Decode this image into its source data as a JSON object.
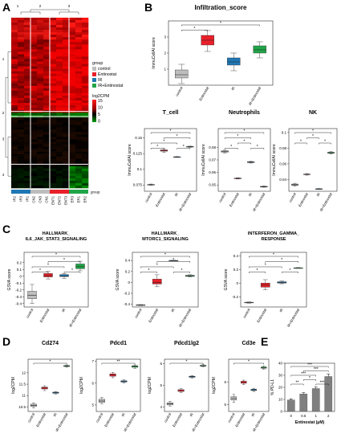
{
  "panels": {
    "A": "A",
    "B": "B",
    "C": "C",
    "D": "D",
    "E": "E"
  },
  "heatmap": {
    "cluster_labels": [
      "1",
      "2",
      "3"
    ],
    "row_cluster_labels": [
      "1",
      "2",
      "3",
      "4"
    ],
    "sample_labels": [
      "IR2",
      "IR3",
      "IR1",
      "CN2",
      "CN3",
      "CN1",
      "ENT1",
      "ENT2",
      "ENT3",
      "ER3",
      "ER1",
      "ER2"
    ],
    "group_label": "group",
    "legend_title": "group",
    "legend_items": [
      {
        "label": "control",
        "color": "#bdbdbd"
      },
      {
        "label": "Entinostat",
        "color": "#e8202a"
      },
      {
        "label": "IR",
        "color": "#1f77b4"
      },
      {
        "label": "IR+Entinostat",
        "color": "#21a548"
      }
    ],
    "colorscale_title": "log2CPM",
    "colorscale_ticks": [
      "15",
      "10",
      "5",
      "0"
    ],
    "sample_groups": [
      "IR",
      "IR",
      "IR",
      "control",
      "control",
      "control",
      "Entinostat",
      "Entinostat",
      "Entinostat",
      "IR+Entinostat",
      "IR+Entinostat",
      "IR+Entinostat"
    ]
  },
  "chart_data": [
    {
      "id": "B-infiltration",
      "type": "box",
      "title": "Infiltration_score",
      "ylabel": "ImmuCellAI score",
      "categories": [
        "control",
        "Entinostat",
        "IR",
        "IR+Entinostat"
      ],
      "ylim": [
        0,
        4
      ],
      "yticks": [
        1,
        2,
        3
      ],
      "boxes": [
        {
          "min": 0.1,
          "q1": 0.45,
          "median": 0.65,
          "q3": 0.95,
          "max": 1.3
        },
        {
          "min": 2.1,
          "q1": 2.5,
          "median": 2.8,
          "q3": 3.1,
          "max": 3.4
        },
        {
          "min": 0.9,
          "q1": 1.25,
          "median": 1.45,
          "q3": 1.7,
          "max": 2.0
        },
        {
          "min": 1.7,
          "q1": 2.0,
          "median": 2.2,
          "q3": 2.45,
          "max": 2.7
        }
      ],
      "significance": [
        {
          "from": 0,
          "to": 1,
          "label": "*"
        },
        {
          "from": 0,
          "to": 3,
          "label": "*"
        }
      ]
    },
    {
      "id": "B-tcell",
      "type": "box",
      "title": "T_cell",
      "ylabel": "ImmuCellAI score",
      "categories": [
        "control",
        "Entinostat",
        "IR",
        "IR+Entinostat"
      ],
      "ylim": [
        0.065,
        0.165
      ],
      "yticks": [
        0.075,
        0.1,
        0.125,
        0.15
      ],
      "boxes": [
        {
          "min": 0.0745,
          "q1": 0.0752,
          "median": 0.0755,
          "q3": 0.0758,
          "max": 0.0765
        },
        {
          "min": 0.127,
          "q1": 0.129,
          "median": 0.13,
          "q3": 0.131,
          "max": 0.133
        },
        {
          "min": 0.119,
          "q1": 0.1195,
          "median": 0.1198,
          "q3": 0.12,
          "max": 0.1205
        },
        {
          "min": 0.135,
          "q1": 0.1355,
          "median": 0.136,
          "q3": 0.1365,
          "max": 0.137
        }
      ],
      "significance": [
        {
          "from": 0,
          "to": 1,
          "label": "*"
        },
        {
          "from": 0,
          "to": 2,
          "label": "*"
        },
        {
          "from": 0,
          "to": 3,
          "label": "*"
        },
        {
          "from": 1,
          "to": 3,
          "label": "*"
        },
        {
          "from": 2,
          "to": 3,
          "label": "*"
        }
      ]
    },
    {
      "id": "B-neutrophils",
      "type": "box",
      "title": "Neutrophils",
      "ylabel": "ImmuCellAI score",
      "categories": [
        "control",
        "Entinostat",
        "IR",
        "IR+Entinostat"
      ],
      "ylim": [
        0.045,
        0.095
      ],
      "yticks": [
        0.05,
        0.06,
        0.07,
        0.08
      ],
      "boxes": [
        {
          "min": 0.0755,
          "q1": 0.0762,
          "median": 0.0767,
          "q3": 0.0772,
          "max": 0.0778
        },
        {
          "min": 0.0548,
          "q1": 0.0551,
          "median": 0.0553,
          "q3": 0.0555,
          "max": 0.0558
        },
        {
          "min": 0.0675,
          "q1": 0.0679,
          "median": 0.0682,
          "q3": 0.0685,
          "max": 0.0689
        },
        {
          "min": 0.0482,
          "q1": 0.0485,
          "median": 0.0487,
          "q3": 0.0489,
          "max": 0.0492
        }
      ],
      "significance": [
        {
          "from": 0,
          "to": 1,
          "label": "*"
        },
        {
          "from": 0,
          "to": 2,
          "label": "*"
        },
        {
          "from": 0,
          "to": 3,
          "label": "*"
        },
        {
          "from": 1,
          "to": 2,
          "label": "*"
        },
        {
          "from": 2,
          "to": 3,
          "label": "*"
        }
      ]
    },
    {
      "id": "B-nk",
      "type": "box",
      "title": "NK",
      "ylabel": "ImmuCellAI score",
      "categories": [
        "control",
        "Entinostat",
        "IR",
        "IR+Entinostat"
      ],
      "ylim": [
        0.025,
        0.105
      ],
      "yticks": [
        0.04,
        0.06,
        0.08,
        0.1
      ],
      "boxes": [
        {
          "min": 0.0315,
          "q1": 0.0325,
          "median": 0.0333,
          "q3": 0.0342,
          "max": 0.0352
        },
        {
          "min": 0.0455,
          "q1": 0.0462,
          "median": 0.0466,
          "q3": 0.047,
          "max": 0.0476
        },
        {
          "min": 0.0275,
          "q1": 0.0278,
          "median": 0.028,
          "q3": 0.0282,
          "max": 0.0285
        },
        {
          "min": 0.0725,
          "q1": 0.0735,
          "median": 0.0742,
          "q3": 0.0748,
          "max": 0.0757
        }
      ],
      "significance": [
        {
          "from": 0,
          "to": 1,
          "label": "*"
        },
        {
          "from": 0,
          "to": 3,
          "label": "*"
        },
        {
          "from": 1,
          "to": 2,
          "label": "*"
        },
        {
          "from": 2,
          "to": 3,
          "label": "*"
        }
      ]
    },
    {
      "id": "C-il6",
      "type": "box",
      "title": "HALLMARK_ IL6_JAK_STAT3_SIGNALING",
      "title_lines": [
        "HALLMARK_",
        "IL6_JAK_STAT3_SIGNALING"
      ],
      "ylabel": "GSVA score",
      "categories": [
        "control",
        "Entinostat",
        "IR",
        "IR+Entinostat"
      ],
      "ylim": [
        -0.45,
        0.35
      ],
      "yticks": [
        -0.4,
        -0.3,
        -0.2,
        -0.1,
        0.0,
        0.1,
        0.2
      ],
      "boxes": [
        {
          "min": -0.4,
          "q1": -0.33,
          "median": -0.28,
          "q3": -0.22,
          "max": -0.12
        },
        {
          "min": -0.04,
          "q1": -0.01,
          "median": 0.01,
          "q3": 0.04,
          "max": 0.07
        },
        {
          "min": -0.03,
          "q1": -0.005,
          "median": 0.005,
          "q3": 0.025,
          "max": 0.04
        },
        {
          "min": 0.08,
          "q1": 0.11,
          "median": 0.14,
          "q3": 0.18,
          "max": 0.22
        }
      ],
      "significance": [
        {
          "from": 0,
          "to": 1,
          "label": "*"
        },
        {
          "from": 0,
          "to": 2,
          "label": "*"
        },
        {
          "from": 0,
          "to": 3,
          "label": "*"
        },
        {
          "from": 1,
          "to": 3,
          "label": "*"
        },
        {
          "from": 2,
          "to": 3,
          "label": "*"
        }
      ]
    },
    {
      "id": "C-mtorc1",
      "type": "box",
      "title": "HALLMARK_ MTORC1_SIGNALING",
      "title_lines": [
        "HALLMARK_",
        "MTORC1_SIGNALING"
      ],
      "ylabel": "GSVA score",
      "categories": [
        "control",
        "Entinostat",
        "IR",
        "IR+Entinostat"
      ],
      "ylim": [
        -0.45,
        0.55
      ],
      "yticks": [
        -0.4,
        -0.2,
        0.0,
        0.2,
        0.4
      ],
      "boxes": [
        {
          "min": -0.425,
          "q1": -0.418,
          "median": -0.414,
          "q3": -0.41,
          "max": -0.405
        },
        {
          "min": -0.08,
          "q1": -0.03,
          "median": 0.0,
          "q3": 0.06,
          "max": 0.14
        },
        {
          "min": 0.395,
          "q1": 0.398,
          "median": 0.4,
          "q3": 0.402,
          "max": 0.405
        },
        {
          "min": 0.1,
          "q1": 0.11,
          "median": 0.12,
          "q3": 0.13,
          "max": 0.14
        }
      ],
      "significance": [
        {
          "from": 0,
          "to": 1,
          "label": "*"
        },
        {
          "from": 0,
          "to": 2,
          "label": "*"
        },
        {
          "from": 0,
          "to": 3,
          "label": "*"
        },
        {
          "from": 1,
          "to": 3,
          "label": "*"
        },
        {
          "from": 2,
          "to": 3,
          "label": "*"
        }
      ]
    },
    {
      "id": "C-ifng",
      "type": "box",
      "title": "INTERFERON_GAMMA_ RESPONSE",
      "title_lines": [
        "INTERFERON_GAMMA_",
        "RESPONSE"
      ],
      "ylabel": "GSVA score",
      "categories": [
        "control",
        "Entinostat",
        "IR",
        "IR+Entinostat"
      ],
      "ylim": [
        -0.35,
        0.45
      ],
      "yticks": [
        -0.2,
        0.0,
        0.2,
        0.4
      ],
      "boxes": [
        {
          "min": -0.295,
          "q1": -0.29,
          "median": -0.285,
          "q3": -0.28,
          "max": -0.275
        },
        {
          "min": -0.1,
          "q1": -0.06,
          "median": -0.03,
          "q3": 0.0,
          "max": 0.05
        },
        {
          "min": -0.01,
          "q1": 0.0,
          "median": 0.01,
          "q3": 0.02,
          "max": 0.03
        },
        {
          "min": 0.215,
          "q1": 0.22,
          "median": 0.222,
          "q3": 0.224,
          "max": 0.228
        }
      ],
      "significance": [
        {
          "from": 0,
          "to": 1,
          "label": "*"
        },
        {
          "from": 0,
          "to": 2,
          "label": "*"
        },
        {
          "from": 0,
          "to": 3,
          "label": "*"
        },
        {
          "from": 1,
          "to": 3,
          "label": "*"
        },
        {
          "from": 2,
          "to": 3,
          "label": "*"
        }
      ]
    },
    {
      "id": "D-cd274",
      "type": "box",
      "title": "Cd274",
      "ylabel": "log2CPM",
      "categories": [
        "control",
        "Entinostat",
        "IR",
        "IR+Entinostat"
      ],
      "ylim": [
        10.3,
        12.6
      ],
      "yticks": [
        10.5,
        11.0,
        11.5,
        12.0
      ],
      "boxes": [
        {
          "min": 10.45,
          "q1": 10.52,
          "median": 10.57,
          "q3": 10.62,
          "max": 10.68
        },
        {
          "min": 11.22,
          "q1": 11.29,
          "median": 11.33,
          "q3": 11.37,
          "max": 11.43
        },
        {
          "min": 11.07,
          "q1": 11.1,
          "median": 11.12,
          "q3": 11.15,
          "max": 11.18
        },
        {
          "min": 12.25,
          "q1": 12.28,
          "median": 12.3,
          "q3": 12.32,
          "max": 12.35
        }
      ],
      "significance": [
        {
          "from": 0,
          "to": 3,
          "label": "*"
        }
      ]
    },
    {
      "id": "D-pdcd1",
      "type": "box",
      "title": "Pdcd1",
      "ylabel": "log2CPM",
      "categories": [
        "control",
        "Entinostat",
        "IR",
        "IR+Entinostat"
      ],
      "ylim": [
        4.7,
        7.1
      ],
      "yticks": [
        5,
        6,
        7
      ],
      "boxes": [
        {
          "min": 5.05,
          "q1": 5.12,
          "median": 5.18,
          "q3": 5.26,
          "max": 5.35
        },
        {
          "min": 6.25,
          "q1": 6.32,
          "median": 6.37,
          "q3": 6.43,
          "max": 6.5
        },
        {
          "min": 6.0,
          "q1": 6.05,
          "median": 6.08,
          "q3": 6.11,
          "max": 6.15
        },
        {
          "min": 6.68,
          "q1": 6.73,
          "median": 6.77,
          "q3": 6.8,
          "max": 6.84
        }
      ],
      "significance": [
        {
          "from": 0,
          "to": 3,
          "label": "**"
        }
      ]
    },
    {
      "id": "D-pdcd1lg2",
      "type": "box",
      "title": "Pdcd1lg2",
      "ylabel": "log2CPM",
      "categories": [
        "control",
        "Entinostat",
        "IR",
        "IR+Entinostat"
      ],
      "ylim": [
        3.8,
        6.2
      ],
      "yticks": [
        4,
        5,
        6
      ],
      "boxes": [
        {
          "min": 4.05,
          "q1": 4.1,
          "median": 4.15,
          "q3": 4.2,
          "max": 4.27
        },
        {
          "min": 4.67,
          "q1": 4.72,
          "median": 4.76,
          "q3": 4.8,
          "max": 4.85
        },
        {
          "min": 5.33,
          "q1": 5.37,
          "median": 5.4,
          "q3": 5.42,
          "max": 5.45
        },
        {
          "min": 5.85,
          "q1": 5.88,
          "median": 5.9,
          "q3": 5.92,
          "max": 5.95
        }
      ],
      "significance": [
        {
          "from": 0,
          "to": 3,
          "label": "*"
        }
      ]
    },
    {
      "id": "D-cd3e",
      "type": "box",
      "title": "Cd3e",
      "ylabel": "log2CPM",
      "categories": [
        "control",
        "Entinostat",
        "IR",
        "IR+Entinostat"
      ],
      "ylim": [
        4.7,
        7.0
      ],
      "yticks": [
        5,
        6
      ],
      "boxes": [
        {
          "min": 5.1,
          "q1": 5.2,
          "median": 5.27,
          "q3": 5.35,
          "max": 5.45
        },
        {
          "min": 5.88,
          "q1": 5.94,
          "median": 5.98,
          "q3": 6.03,
          "max": 6.08
        },
        {
          "min": 5.58,
          "q1": 5.62,
          "median": 5.65,
          "q3": 5.68,
          "max": 5.72
        },
        {
          "min": 6.55,
          "q1": 6.6,
          "median": 6.63,
          "q3": 6.66,
          "max": 6.7
        }
      ],
      "significance": [
        {
          "from": 0,
          "to": 3,
          "label": "*"
        }
      ]
    },
    {
      "id": "E-pdl1",
      "type": "bar",
      "title": "",
      "ylabel": "% PD-L1",
      "xlabel": "Entinostat (μM)",
      "categories": [
        "0",
        "0.5",
        "1",
        "2"
      ],
      "values": [
        9.5,
        14.5,
        19,
        29
      ],
      "errors": [
        1.0,
        1.0,
        1.2,
        2.0
      ],
      "ylim": [
        0,
        40
      ],
      "yticks": [
        0,
        10,
        20,
        30,
        40
      ],
      "significance": [
        {
          "from": 0,
          "to": 1,
          "label": "**"
        },
        {
          "from": 1,
          "to": 2,
          "label": "*"
        },
        {
          "from": 2,
          "to": 3,
          "label": "***"
        },
        {
          "from": 0,
          "to": 2,
          "label": "***"
        },
        {
          "from": 1,
          "to": 3,
          "label": "***"
        },
        {
          "from": 0,
          "to": 3,
          "label": "***"
        }
      ]
    }
  ]
}
